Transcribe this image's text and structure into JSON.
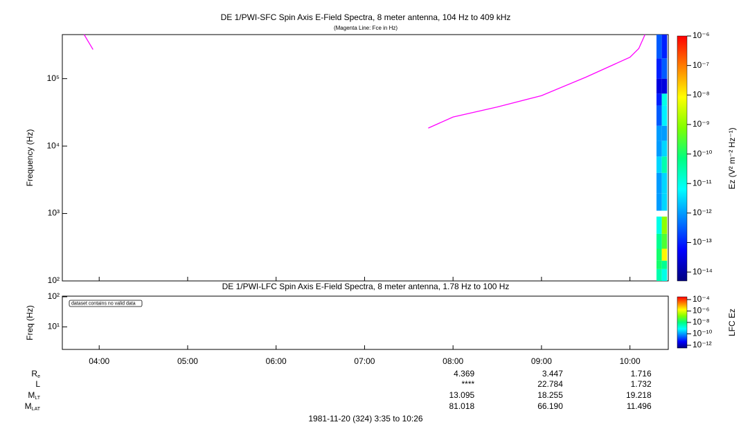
{
  "chart_data": [
    {
      "type": "heatmap",
      "title": "DE 1/PWI-SFC  Spin Axis E-Field Spectra, 8 meter antenna, 104 Hz to 409 kHz",
      "subtitle": "(Magenta Line: Fce in Hz)",
      "y_label": "Frequency (Hz)",
      "colorbar_label": "Ez (V² m⁻² Hz⁻¹)",
      "xlim": [
        3.5833,
        10.4333
      ],
      "ylim": [
        100,
        450000
      ],
      "log_y": true,
      "yticks": [
        {
          "value": 100,
          "label": "10²"
        },
        {
          "value": 1000,
          "label": "10³"
        },
        {
          "value": 10000,
          "label": "10⁴"
        },
        {
          "value": 100000,
          "label": "10⁵"
        }
      ],
      "x_edges": [
        10.3,
        10.36,
        10.42
      ],
      "y_edges": [
        100,
        150,
        200,
        300,
        500,
        900,
        1100,
        2000,
        4000,
        7000,
        12000,
        20000,
        40000,
        60000,
        100000,
        200000,
        450000
      ],
      "z": [
        [
          3e-11,
          1e-11
        ],
        [
          1e-10,
          5e-11
        ],
        [
          1e-10,
          1e-08
        ],
        [
          5e-11,
          3e-10
        ],
        [
          1e-11,
          1e-09
        ],
        [
          null,
          null
        ],
        [
          1e-12,
          3e-12
        ],
        [
          1e-12,
          3e-12
        ],
        [
          3e-12,
          3e-11
        ],
        [
          1e-12,
          3e-12
        ],
        [
          1e-12,
          1e-12
        ],
        [
          3e-13,
          5e-12
        ],
        [
          1e-13,
          1e-11
        ],
        [
          3e-14,
          3e-14
        ],
        [
          1e-13,
          3e-13
        ],
        [
          3e-13,
          1e-13
        ]
      ],
      "clim": [
        5e-15,
        1e-06
      ],
      "cticks": [
        {
          "value": 1e-06,
          "label": "10⁻⁶"
        },
        {
          "value": 1e-07,
          "label": "10⁻⁷"
        },
        {
          "value": 1e-08,
          "label": "10⁻⁸"
        },
        {
          "value": 1e-09,
          "label": "10⁻⁹"
        },
        {
          "value": 1e-10,
          "label": "10⁻¹⁰"
        },
        {
          "value": 1e-11,
          "label": "10⁻¹¹"
        },
        {
          "value": 1e-12,
          "label": "10⁻¹²"
        },
        {
          "value": 1e-13,
          "label": "10⁻¹³"
        },
        {
          "value": 1e-14,
          "label": "10⁻¹⁴"
        }
      ],
      "colormap": [
        "#00007f",
        "#0000ff",
        "#0080ff",
        "#00ffff",
        "#00ff80",
        "#80ff00",
        "#ffff00",
        "#ff8000",
        "#ff0000"
      ],
      "series": [
        {
          "color": "#ff00ff",
          "x": [
            3.83,
            3.93,
            null,
            7.72,
            8.0,
            8.5,
            9.0,
            9.5,
            10.0,
            10.1,
            10.17
          ],
          "values": [
            450000,
            270000,
            null,
            18500,
            27000,
            38000,
            56000,
            105000,
            208000,
            280000,
            450000
          ]
        }
      ]
    },
    {
      "type": "heatmap",
      "title": "DE 1/PWI-LFC  Spin Axis E-Field Spectra, 8 meter antenna, 1.78 Hz to 100 Hz",
      "y_label": "Freq (Hz)",
      "colorbar_label": "LFC Ez",
      "annotation": "dataset contains no valid data",
      "xlim": [
        3.5833,
        10.4333
      ],
      "xticks": [
        {
          "value": 4,
          "label": "04:00"
        },
        {
          "value": 5,
          "label": "05:00"
        },
        {
          "value": 6,
          "label": "06:00"
        },
        {
          "value": 7,
          "label": "07:00"
        },
        {
          "value": 8,
          "label": "08:00"
        },
        {
          "value": 9,
          "label": "09:00"
        },
        {
          "value": 10,
          "label": "10:00"
        }
      ],
      "ylim": [
        1.78,
        105
      ],
      "log_y": true,
      "yticks": [
        {
          "value": 10,
          "label": "10¹"
        },
        {
          "value": 100,
          "label": "10²"
        }
      ],
      "clim": [
        3.3e-13,
        0.0003
      ],
      "cticks": [
        {
          "value": 0.0001,
          "label": "10⁻⁴"
        },
        {
          "value": 1e-06,
          "label": "10⁻⁶"
        },
        {
          "value": 1e-08,
          "label": "10⁻⁸"
        },
        {
          "value": 1e-10,
          "label": "10⁻¹⁰"
        },
        {
          "value": 1e-12,
          "label": "10⁻¹²"
        }
      ],
      "colormap": [
        "#00007f",
        "#0000ff",
        "#0080ff",
        "#00ffff",
        "#00ff80",
        "#80ff00",
        "#ffff00",
        "#ff8000",
        "#ff0000"
      ]
    }
  ],
  "ephemeris": {
    "labels": [
      {
        "text": "R",
        "sub": "e"
      },
      {
        "text": "L"
      },
      {
        "text": "M",
        "sub": "LT"
      },
      {
        "text": "M",
        "sub": "LAT"
      }
    ],
    "rows": [
      [
        "4.369",
        "3.447",
        "1.716"
      ],
      [
        "****",
        "22.784",
        "1.732"
      ],
      [
        "13.095",
        "18.255",
        "19.218"
      ],
      [
        "81.018",
        "66.190",
        "11.496"
      ]
    ]
  },
  "footer": "1981-11-20 (324) 3:35 to 10:26"
}
